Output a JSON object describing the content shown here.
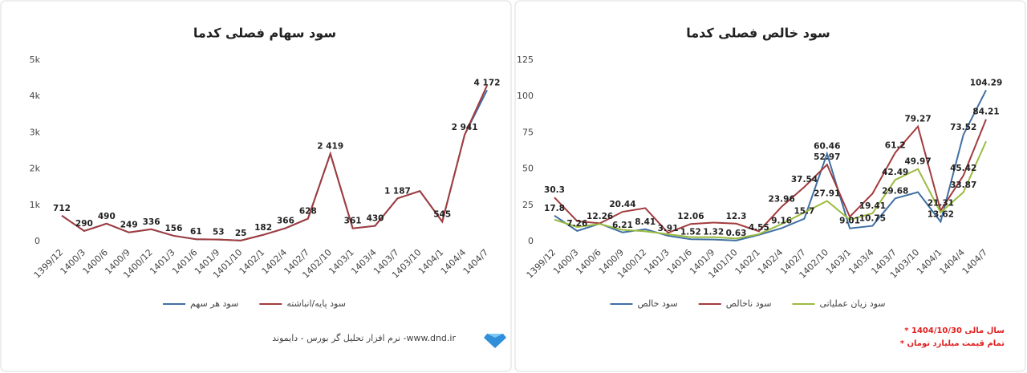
{
  "chart_data": [
    {
      "type": "line",
      "title": "سود سهام فصلی کدما",
      "categories": [
        "1399/12",
        "1400/3",
        "1400/6",
        "1400/9",
        "1400/12",
        "1401/3",
        "1401/6",
        "1401/9",
        "1401/10",
        "1402/1",
        "1402/4",
        "1402/7",
        "1402/10",
        "1403/1",
        "1403/4",
        "1403/7",
        "1403/10",
        "1404/1",
        "1404/4",
        "1404/7"
      ],
      "series": [
        {
          "name": "سود هر سهم",
          "color": "#3f6fa3",
          "values": [
            712,
            290,
            490,
            249,
            336,
            156,
            61,
            53,
            25,
            182,
            366,
            628,
            2419,
            361,
            430,
            1187,
            1390,
            545,
            2941,
            4172
          ],
          "value_labels": [
            "712",
            "290",
            "490",
            "249",
            "336",
            "156",
            "61",
            "53",
            "25",
            "182",
            "366",
            "628",
            "2 419",
            "361",
            "430",
            "1 187",
            null,
            "545",
            "2 941",
            "4 172"
          ]
        },
        {
          "name": "سود پایه/انباشته",
          "color": "#a23b3d",
          "values": [
            712,
            290,
            490,
            249,
            336,
            156,
            61,
            53,
            25,
            182,
            366,
            628,
            2419,
            361,
            430,
            1187,
            1390,
            545,
            2941,
            4300
          ]
        }
      ],
      "ylim": [
        0,
        5000
      ],
      "yticks": [
        0,
        {
          "value": 1000,
          "label": "1k"
        },
        {
          "value": 2000,
          "label": "2k"
        },
        {
          "value": 3000,
          "label": "3k"
        },
        {
          "value": 4000,
          "label": "4k"
        },
        {
          "value": 5000,
          "label": "5k"
        }
      ],
      "grid": false,
      "legend": "bottom"
    },
    {
      "type": "line",
      "title": "سود خالص فصلی کدما",
      "categories": [
        "1399/12",
        "1400/3",
        "1400/6",
        "1400/9",
        "1400/12",
        "1401/3",
        "1401/6",
        "1401/9",
        "1401/10",
        "1402/1",
        "1402/4",
        "1402/7",
        "1402/10",
        "1403/1",
        "1403/4",
        "1403/7",
        "1403/10",
        "1404/1",
        "1404/4",
        "1404/7"
      ],
      "series": [
        {
          "name": "سود خالص",
          "color": "#3f6fa3",
          "values": [
            17.8,
            7.26,
            12.26,
            6.21,
            8.41,
            3.91,
            1.52,
            1.32,
            0.63,
            4.55,
            9.16,
            15.7,
            60.46,
            9.01,
            10.75,
            29.68,
            34,
            13.62,
            73.52,
            104.29
          ],
          "value_labels": [
            "17.8",
            "7.26",
            "12.26",
            "6.21",
            "8.41",
            "3.91",
            "1.52",
            "1.32",
            "0.63",
            "4.55",
            "9.16",
            "15.7",
            "60.46",
            "9.01",
            "10.75",
            "29.68",
            null,
            "13.62",
            "73.52",
            "104.29"
          ]
        },
        {
          "name": "سود ناخالص",
          "color": "#a23b3d",
          "values": [
            30.3,
            14,
            12.5,
            20.44,
            23,
            6,
            12.06,
            13,
            12.3,
            7,
            23.96,
            37.54,
            52.97,
            17,
            33,
            61.2,
            79.27,
            21.31,
            45.42,
            84.21
          ],
          "value_labels": [
            "30.3",
            null,
            null,
            "20.44",
            null,
            null,
            "12.06",
            null,
            "12.3",
            null,
            "23.96",
            "37.54",
            "52.97",
            null,
            null,
            "61.2",
            "79.27",
            "21.31",
            "45.42",
            "84.21"
          ]
        },
        {
          "name": "سود زیان عملیاتی",
          "color": "#9bbb3f",
          "values": [
            15,
            10,
            12,
            8,
            7,
            5,
            3,
            3,
            2,
            5,
            12,
            20,
            27.91,
            15,
            19.41,
            42.49,
            49.97,
            20,
            33.87,
            69
          ],
          "value_labels": [
            null,
            null,
            null,
            null,
            null,
            null,
            null,
            null,
            null,
            null,
            null,
            null,
            "27.91",
            null,
            "19.41",
            "42.49",
            "49.97",
            null,
            "33.87",
            null
          ]
        }
      ],
      "ylim": [
        0,
        125
      ],
      "yticks": [
        0,
        25,
        50,
        75,
        100,
        125
      ],
      "grid": false,
      "legend": "bottom"
    }
  ],
  "footer": {
    "brand": "نرم افزار تحلیل گر بورس - دایموند -www.dnd.ir",
    "notes": [
      "* سال مالی 1404/10/30",
      "* تمام قیمت میلیارد تومان"
    ]
  }
}
